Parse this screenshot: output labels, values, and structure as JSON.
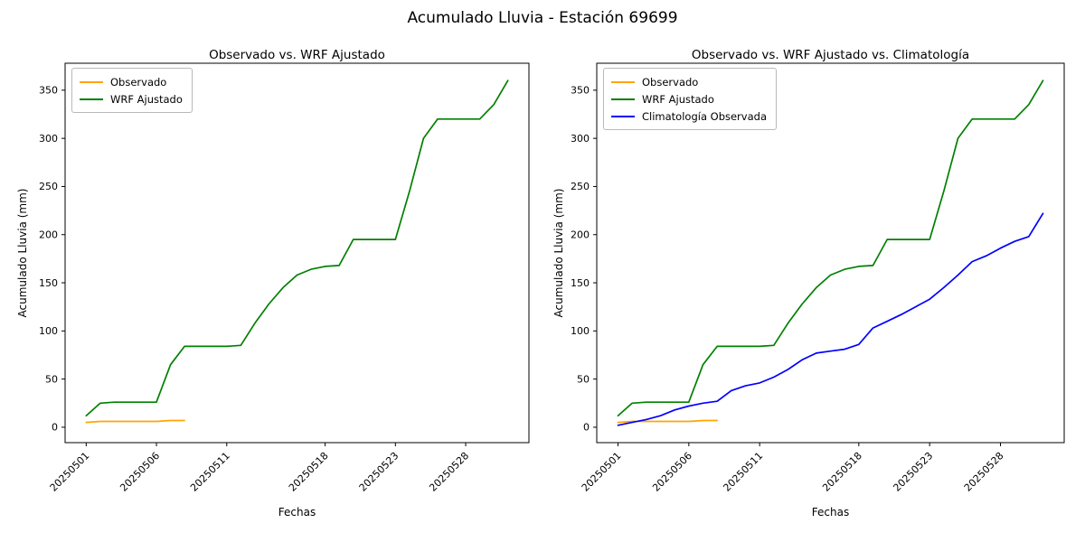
{
  "figure": {
    "title": "Acumulado Lluvia - Estación 69699",
    "background": "#ffffff"
  },
  "colors": {
    "observado": "#ffa500",
    "wrf_ajustado": "#008000",
    "climatologia": "#0000ff",
    "axis": "#000000",
    "legend_border": "#b9b9b9"
  },
  "chart_data": [
    {
      "type": "line",
      "title": "Observado vs. WRF Ajustado",
      "xlabel": "Fechas",
      "ylabel": "Acumulado Lluvia (mm)",
      "x_dates": [
        "20250501",
        "20250502",
        "20250503",
        "20250504",
        "20250505",
        "20250506",
        "20250507",
        "20250508",
        "20250509",
        "20250510",
        "20250511",
        "20250512",
        "20250513",
        "20250514",
        "20250515",
        "20250516",
        "20250517",
        "20250518",
        "20250519",
        "20250520",
        "20250521",
        "20250522",
        "20250523",
        "20250524",
        "20250525",
        "20250526",
        "20250527",
        "20250528",
        "20250529",
        "20250530",
        "20250531"
      ],
      "series": [
        {
          "name": "Observado",
          "color": "#ffa500",
          "values": [
            5,
            6,
            6,
            6,
            6,
            6,
            7,
            7
          ]
        },
        {
          "name": "WRF Ajustado",
          "color": "#008000",
          "values": [
            12,
            25,
            26,
            26,
            26,
            26,
            65,
            84,
            84,
            84,
            84,
            85,
            108,
            128,
            145,
            158,
            164,
            167,
            168,
            195,
            195,
            195,
            195,
            245,
            300,
            320,
            320,
            320,
            320,
            335,
            360
          ]
        }
      ],
      "xticks": {
        "days": [
          1,
          6,
          11,
          18,
          23,
          28
        ],
        "labels": [
          "20250501",
          "20250506",
          "20250511",
          "20250518",
          "20250523",
          "20250528"
        ]
      },
      "yticks": [
        0,
        50,
        100,
        150,
        200,
        250,
        300,
        350
      ],
      "xlim": [
        -0.5,
        32.5
      ],
      "ylim": [
        -16,
        378
      ],
      "grid": false,
      "legend_position": "upper left"
    },
    {
      "type": "line",
      "title": "Observado vs. WRF Ajustado vs. Climatología",
      "xlabel": "Fechas",
      "ylabel": "Acumulado Lluvia (mm)",
      "x_dates": [
        "20250501",
        "20250502",
        "20250503",
        "20250504",
        "20250505",
        "20250506",
        "20250507",
        "20250508",
        "20250509",
        "20250510",
        "20250511",
        "20250512",
        "20250513",
        "20250514",
        "20250515",
        "20250516",
        "20250517",
        "20250518",
        "20250519",
        "20250520",
        "20250521",
        "20250522",
        "20250523",
        "20250524",
        "20250525",
        "20250526",
        "20250527",
        "20250528",
        "20250529",
        "20250530",
        "20250531"
      ],
      "series": [
        {
          "name": "Observado",
          "color": "#ffa500",
          "values": [
            5,
            6,
            6,
            6,
            6,
            6,
            7,
            7
          ]
        },
        {
          "name": "WRF Ajustado",
          "color": "#008000",
          "values": [
            12,
            25,
            26,
            26,
            26,
            26,
            65,
            84,
            84,
            84,
            84,
            85,
            108,
            128,
            145,
            158,
            164,
            167,
            168,
            195,
            195,
            195,
            195,
            245,
            300,
            320,
            320,
            320,
            320,
            335,
            360
          ]
        },
        {
          "name": "Climatología Observada",
          "color": "#0000ff",
          "values": [
            2,
            5,
            8,
            12,
            18,
            22,
            25,
            27,
            38,
            43,
            46,
            52,
            60,
            70,
            77,
            79,
            81,
            86,
            103,
            110,
            117,
            125,
            133,
            145,
            158,
            172,
            178,
            186,
            193,
            198,
            222
          ]
        }
      ],
      "xticks": {
        "days": [
          1,
          6,
          11,
          18,
          23,
          28
        ],
        "labels": [
          "20250501",
          "20250506",
          "20250511",
          "20250518",
          "20250523",
          "20250528"
        ]
      },
      "yticks": [
        0,
        50,
        100,
        150,
        200,
        250,
        300,
        350
      ],
      "xlim": [
        -0.5,
        32.5
      ],
      "ylim": [
        -16,
        378
      ],
      "grid": false,
      "legend_position": "upper left"
    }
  ]
}
